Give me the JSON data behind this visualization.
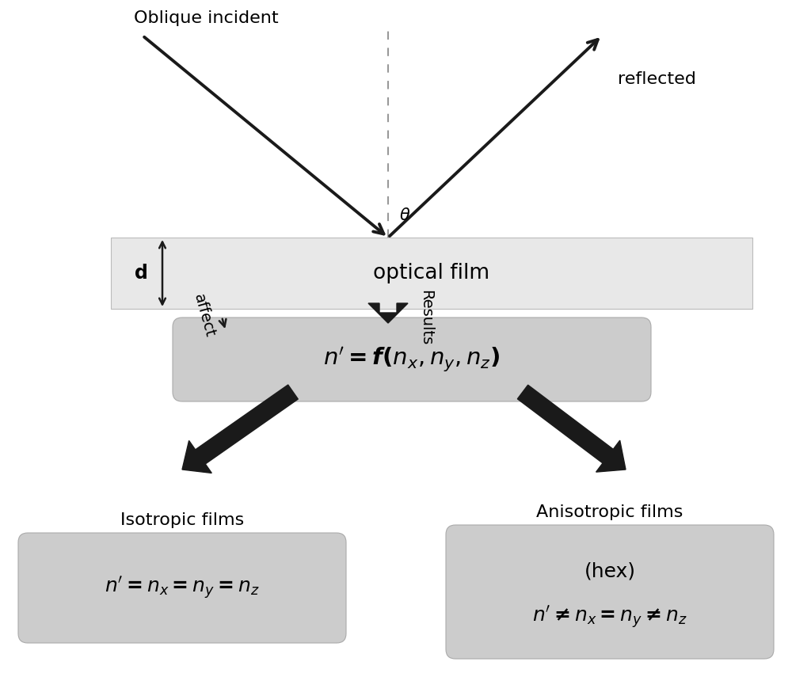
{
  "bg_color": "#ffffff",
  "film_box_color": "#e8e8e8",
  "formula_box_color": "#cccccc",
  "iso_box_color": "#cccccc",
  "aniso_box_color": "#cccccc",
  "arrow_color": "#1a1a1a",
  "text_color": "#000000",
  "film_label": "optical film",
  "oblique_label": "Oblique incident",
  "reflected_label": "reflected",
  "theta_label": "θ",
  "d_label": "d",
  "affect_label": "affect",
  "results_label": "Results",
  "main_formula": "$\\boldsymbol{n' = f(n_x, n_y, n_z)}$",
  "iso_title": "Isotropic films",
  "aniso_title": "Anisotropic films",
  "iso_formula": "$\\boldsymbol{n' = n_x = n_y = n_z}$",
  "aniso_formula_line1": "(hex)",
  "aniso_formula_line2": "$\\boldsymbol{n' \\neq n_x = n_y \\neq n_z}$",
  "figw": 10.0,
  "figh": 8.55,
  "dpi": 100
}
